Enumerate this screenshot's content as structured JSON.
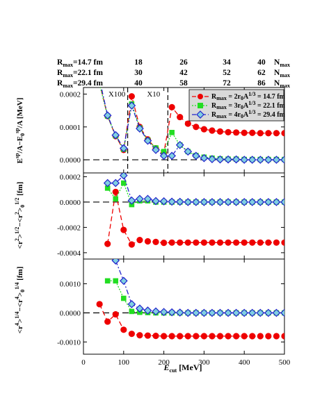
{
  "header": {
    "rows": [
      {
        "label": "R",
        "sub": "max",
        "value": "=14.7 fm",
        "n": [
          "18",
          "26",
          "34",
          "40"
        ],
        "nlabel": "N",
        "nsub": "max"
      },
      {
        "label": "R",
        "sub": "max",
        "value": "=22.1 fm",
        "n": [
          "30",
          "42",
          "52",
          "62"
        ],
        "nlabel": "N",
        "nsub": "max"
      },
      {
        "label": "R",
        "sub": "max",
        "value": "=29.4 fm",
        "n": [
          "40",
          "58",
          "72",
          "86"
        ],
        "nlabel": "N",
        "nsub": "max"
      }
    ]
  },
  "chart_data": [
    {
      "type": "line",
      "panel": "top",
      "ylabel": "E^sp/A−E_0^sp/A [MeV]",
      "ylim": [
        -4e-05,
        0.00022
      ],
      "yticks": [
        0.0,
        0.0001,
        0.0002
      ],
      "ytick_labels": [
        "0.0000",
        "0.0001",
        "0.0002"
      ],
      "annotations": [
        "X100",
        "X10"
      ],
      "vlines": [
        110,
        210
      ],
      "hline": 0,
      "legend": {
        "placement": "top-right",
        "entries": [
          {
            "pre": "R",
            "sub": "max",
            "text": " = 2r",
            "sub2": "0",
            "text2": "A",
            "sup": "1/3",
            "post": " = 14.7 fm"
          },
          {
            "pre": "R",
            "sub": "max",
            "text": " = 3r",
            "sub2": "0",
            "text2": "A",
            "sup": "1/3",
            "post": " = 22.1 fm"
          },
          {
            "pre": "R",
            "sub": "max",
            "text": " = 4r",
            "sub2": "0",
            "text2": "A",
            "sup": "1/3",
            "post": " = 29.4 fm"
          }
        ]
      },
      "x": [
        40,
        60,
        80,
        100,
        120,
        140,
        160,
        180,
        200,
        220,
        240,
        260,
        280,
        300,
        320,
        340,
        360,
        380,
        400,
        420,
        440,
        460,
        480,
        500
      ],
      "series": [
        {
          "key": "red",
          "color": "#ee0000",
          "marker": "circle",
          "dash": "7,4",
          "values": [
            0.000235,
            0.000133,
            7.2e-05,
            3e-05,
            0.000193,
            0.0001,
            6.2e-05,
            3.5e-05,
            2.1e-05,
            0.00016,
            0.00013,
            0.00011,
            0.0001,
            9.3e-05,
            8.9e-05,
            8.6e-05,
            8.4e-05,
            8.3e-05,
            8.2e-05,
            8.2e-05,
            8.1e-05,
            8.1e-05,
            8.1e-05,
            8.1e-05
          ]
        },
        {
          "key": "green",
          "color": "#22dd22",
          "marker": "square",
          "dash": "2,2",
          "values": [
            0.00023,
            0.000133,
            7.3e-05,
            3.2e-05,
            0.00017,
            9.7e-05,
            6e-05,
            3.6e-05,
            2.5e-05,
            8.3e-05,
            4.5e-05,
            2.5e-05,
            1.3e-05,
            8e-06,
            5e-06,
            3e-06,
            2e-06,
            2e-06,
            1e-06,
            1e-06,
            1e-06,
            1e-06,
            1e-06,
            1e-06
          ]
        },
        {
          "key": "blue",
          "color": "#2222cc",
          "marker": "diamond",
          "dash": "7,3,2,3",
          "values": [
            0.000245,
            0.000135,
            7.5e-05,
            3.5e-05,
            0.000165,
            9.5e-05,
            5.8e-05,
            3e-05,
            1.2e-05,
            1.2e-05,
            4.5e-05,
            2.5e-05,
            1.2e-05,
            5e-06,
            2e-06,
            1e-06,
            1e-06,
            1e-06,
            0.0,
            0.0,
            0.0,
            0.0,
            0.0,
            0.0
          ]
        }
      ]
    },
    {
      "type": "line",
      "panel": "middle",
      "ylabel": "<r^2>^1/2−<r^2>_0^1/2 [fm]",
      "ylim": [
        -0.00045,
        0.00023
      ],
      "yticks": [
        -0.0004,
        -0.0002,
        0.0,
        0.0002
      ],
      "ytick_labels": [
        "-0.0004",
        "-0.0002",
        "0.0000",
        "0.0002"
      ],
      "hline": 0,
      "x": [
        40,
        60,
        80,
        100,
        120,
        140,
        160,
        180,
        200,
        220,
        240,
        260,
        280,
        300,
        320,
        340,
        360,
        380,
        400,
        420,
        440,
        460,
        480,
        500
      ],
      "series": [
        {
          "key": "red",
          "color": "#ee0000",
          "marker": "circle",
          "dash": "7,4",
          "values": [
            null,
            -0.00033,
            8e-05,
            -0.00022,
            -0.000335,
            -0.0003,
            -0.00031,
            -0.000315,
            -0.000322,
            -0.00032,
            -0.00032,
            -0.00032,
            -0.00032,
            -0.00032,
            -0.00032,
            -0.00032,
            -0.00032,
            -0.00032,
            -0.00032,
            -0.00032,
            -0.00032,
            -0.00032,
            -0.00032,
            -0.00032
          ]
        },
        {
          "key": "green",
          "color": "#22dd22",
          "marker": "square",
          "dash": "2,2",
          "values": [
            null,
            0.00011,
            2.5e-05,
            0.00015,
            -2e-05,
            1e-05,
            1e-05,
            0.0,
            0.0,
            0.0,
            0.0,
            0.0,
            0.0,
            0.0,
            0.0,
            0.0,
            0.0,
            0.0,
            0.0,
            0.0,
            0.0,
            0.0,
            0.0,
            0.0
          ]
        },
        {
          "key": "blue",
          "color": "#2222cc",
          "marker": "diamond",
          "dash": "7,3,2,3",
          "values": [
            null,
            0.00015,
            0.00015,
            0.00021,
            1.2e-05,
            2.5e-05,
            2.5e-05,
            8e-06,
            6e-06,
            3e-06,
            2e-06,
            0.0,
            0.0,
            0.0,
            0.0,
            0.0,
            0.0,
            0.0,
            0.0,
            0.0,
            0.0,
            0.0,
            0.0,
            0.0
          ]
        }
      ]
    },
    {
      "type": "line",
      "panel": "bottom",
      "ylabel": "<r^4>^1/4−<r^4>_0^1/4 [fm]",
      "xlabel": "E_cut [MeV]",
      "xlim": [
        0,
        500
      ],
      "xticks": [
        0,
        100,
        200,
        300,
        400,
        500
      ],
      "ylim": [
        -0.00142,
        0.00185
      ],
      "yticks": [
        -0.001,
        0.0,
        0.001
      ],
      "ytick_labels": [
        "-0.0010",
        "0.0000",
        "0.0010"
      ],
      "hline": 0,
      "x": [
        40,
        60,
        80,
        100,
        120,
        140,
        160,
        180,
        200,
        220,
        240,
        260,
        280,
        300,
        320,
        340,
        360,
        380,
        400,
        420,
        440,
        460,
        480,
        500
      ],
      "series": [
        {
          "key": "red",
          "color": "#ee0000",
          "marker": "circle",
          "dash": "7,4",
          "values": [
            0.0003,
            -0.0003,
            -5e-05,
            -0.00058,
            -0.00072,
            -0.00077,
            -0.00078,
            -0.00079,
            -0.0008,
            -0.0008,
            -0.0008,
            -0.0008,
            -0.0008,
            -0.0008,
            -0.0008,
            -0.0008,
            -0.0008,
            -0.0008,
            -0.0008,
            -0.0008,
            -0.0008,
            -0.0008,
            -0.0008,
            -0.0008
          ]
        },
        {
          "key": "green",
          "color": "#22dd22",
          "marker": "square",
          "dash": "2,2",
          "values": [
            null,
            0.0011,
            0.0011,
            0.0005,
            5e-05,
            2e-05,
            1e-05,
            0.0,
            0.0,
            0.0,
            0.0,
            0.0,
            0.0,
            0.0,
            0.0,
            0.0,
            0.0,
            0.0,
            0.0,
            0.0,
            0.0,
            0.0,
            0.0,
            0.0
          ]
        },
        {
          "key": "blue",
          "color": "#2222cc",
          "marker": "diamond",
          "dash": "7,3,2,3",
          "values": [
            null,
            null,
            0.0018,
            0.0011,
            0.0003,
            0.00015,
            8e-05,
            5e-05,
            3e-05,
            2e-05,
            1e-05,
            0.0,
            0.0,
            0.0,
            0.0,
            0.0,
            0.0,
            0.0,
            0.0,
            0.0,
            0.0,
            0.0,
            0.0,
            0.0
          ]
        }
      ]
    }
  ]
}
